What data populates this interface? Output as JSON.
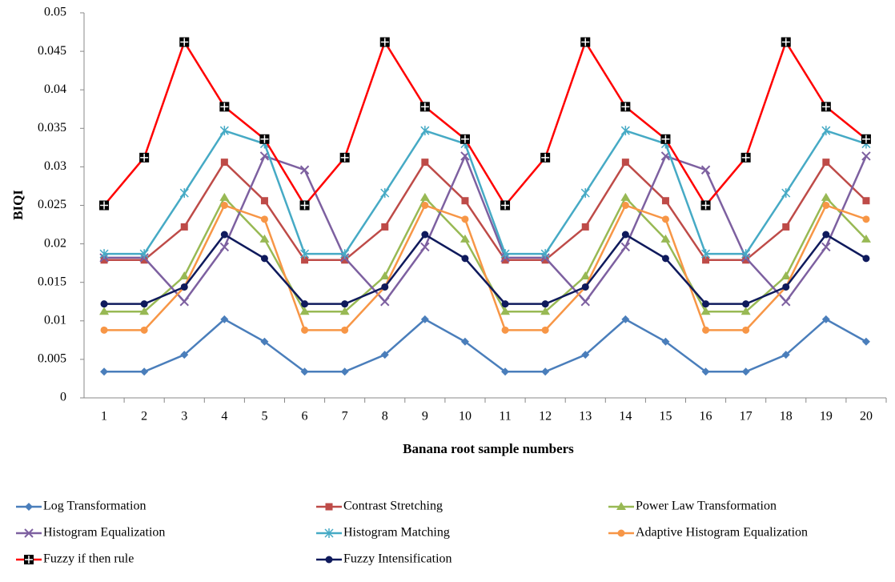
{
  "chart_data": {
    "type": "line",
    "y_label": "BIQI",
    "x_label": "Banana root sample numbers",
    "categories": [
      "1",
      "2",
      "3",
      "4",
      "5",
      "6",
      "7",
      "8",
      "9",
      "10",
      "11",
      "12",
      "13",
      "14",
      "15",
      "16",
      "17",
      "18",
      "19",
      "20"
    ],
    "ylim": [
      0,
      0.05
    ],
    "yticks": [
      0,
      0.005,
      0.01,
      0.015,
      0.02,
      0.025,
      0.03,
      0.035,
      0.04,
      0.045,
      0.05
    ],
    "grid": false,
    "legend": "bottom",
    "series": [
      {
        "name": "Log Transformation",
        "color": "#4a7ebb",
        "marker": "diamond",
        "values": [
          0.0034,
          0.0034,
          0.0056,
          0.0102,
          0.0073,
          0.0034,
          0.0034,
          0.0056,
          0.0102,
          0.0073,
          0.0034,
          0.0034,
          0.0056,
          0.0102,
          0.0073,
          0.0034,
          0.0034,
          0.0056,
          0.0102,
          0.0073
        ]
      },
      {
        "name": "Contrast Stretching",
        "color": "#be4b48",
        "marker": "square",
        "values": [
          0.0179,
          0.0179,
          0.0222,
          0.0306,
          0.0256,
          0.0179,
          0.0179,
          0.0222,
          0.0306,
          0.0256,
          0.0179,
          0.0179,
          0.0222,
          0.0306,
          0.0256,
          0.0179,
          0.0179,
          0.0222,
          0.0306,
          0.0256
        ]
      },
      {
        "name": "Power Law Transformation",
        "color": "#98b954",
        "marker": "triangle",
        "values": [
          0.0112,
          0.0112,
          0.0158,
          0.026,
          0.0206,
          0.0112,
          0.0112,
          0.0158,
          0.026,
          0.0206,
          0.0112,
          0.0112,
          0.0158,
          0.026,
          0.0206,
          0.0112,
          0.0112,
          0.0158,
          0.026,
          0.0206
        ]
      },
      {
        "name": "Histogram Equalization",
        "color": "#7d60a0",
        "marker": "x",
        "values": [
          0.0182,
          0.0182,
          0.0125,
          0.0196,
          0.0314,
          0.0296,
          0.0182,
          0.0125,
          0.0196,
          0.0314,
          0.0182,
          0.0182,
          0.0125,
          0.0196,
          0.0314,
          0.0296,
          0.0182,
          0.0125,
          0.0196,
          0.0314
        ]
      },
      {
        "name": "Histogram Matching",
        "color": "#46aac5",
        "marker": "asterisk",
        "values": [
          0.0187,
          0.0187,
          0.0266,
          0.0347,
          0.033,
          0.0187,
          0.0187,
          0.0266,
          0.0347,
          0.033,
          0.0187,
          0.0187,
          0.0266,
          0.0347,
          0.033,
          0.0187,
          0.0187,
          0.0266,
          0.0347,
          0.033
        ]
      },
      {
        "name": "Adaptive Histogram Equalization",
        "color": "#f79646",
        "marker": "circle",
        "values": [
          0.0088,
          0.0088,
          0.0144,
          0.025,
          0.0232,
          0.0088,
          0.0088,
          0.0144,
          0.025,
          0.0232,
          0.0088,
          0.0088,
          0.0144,
          0.025,
          0.0232,
          0.0088,
          0.0088,
          0.0144,
          0.025,
          0.0232
        ]
      },
      {
        "name": "Fuzzy if then rule",
        "color": "#ff0000",
        "marker": "crossed-square",
        "values": [
          0.025,
          0.0312,
          0.0462,
          0.0378,
          0.0336,
          0.025,
          0.0312,
          0.0462,
          0.0378,
          0.0336,
          0.025,
          0.0312,
          0.0462,
          0.0378,
          0.0336,
          0.025,
          0.0312,
          0.0462,
          0.0378,
          0.0336
        ]
      },
      {
        "name": "Fuzzy Intensification",
        "color": "#0f1a5c",
        "marker": "circle",
        "values": [
          0.0122,
          0.0122,
          0.0144,
          0.0212,
          0.0181,
          0.0122,
          0.0122,
          0.0144,
          0.0212,
          0.0181,
          0.0122,
          0.0122,
          0.0144,
          0.0212,
          0.0181,
          0.0122,
          0.0122,
          0.0144,
          0.0212,
          0.0181
        ]
      }
    ]
  }
}
